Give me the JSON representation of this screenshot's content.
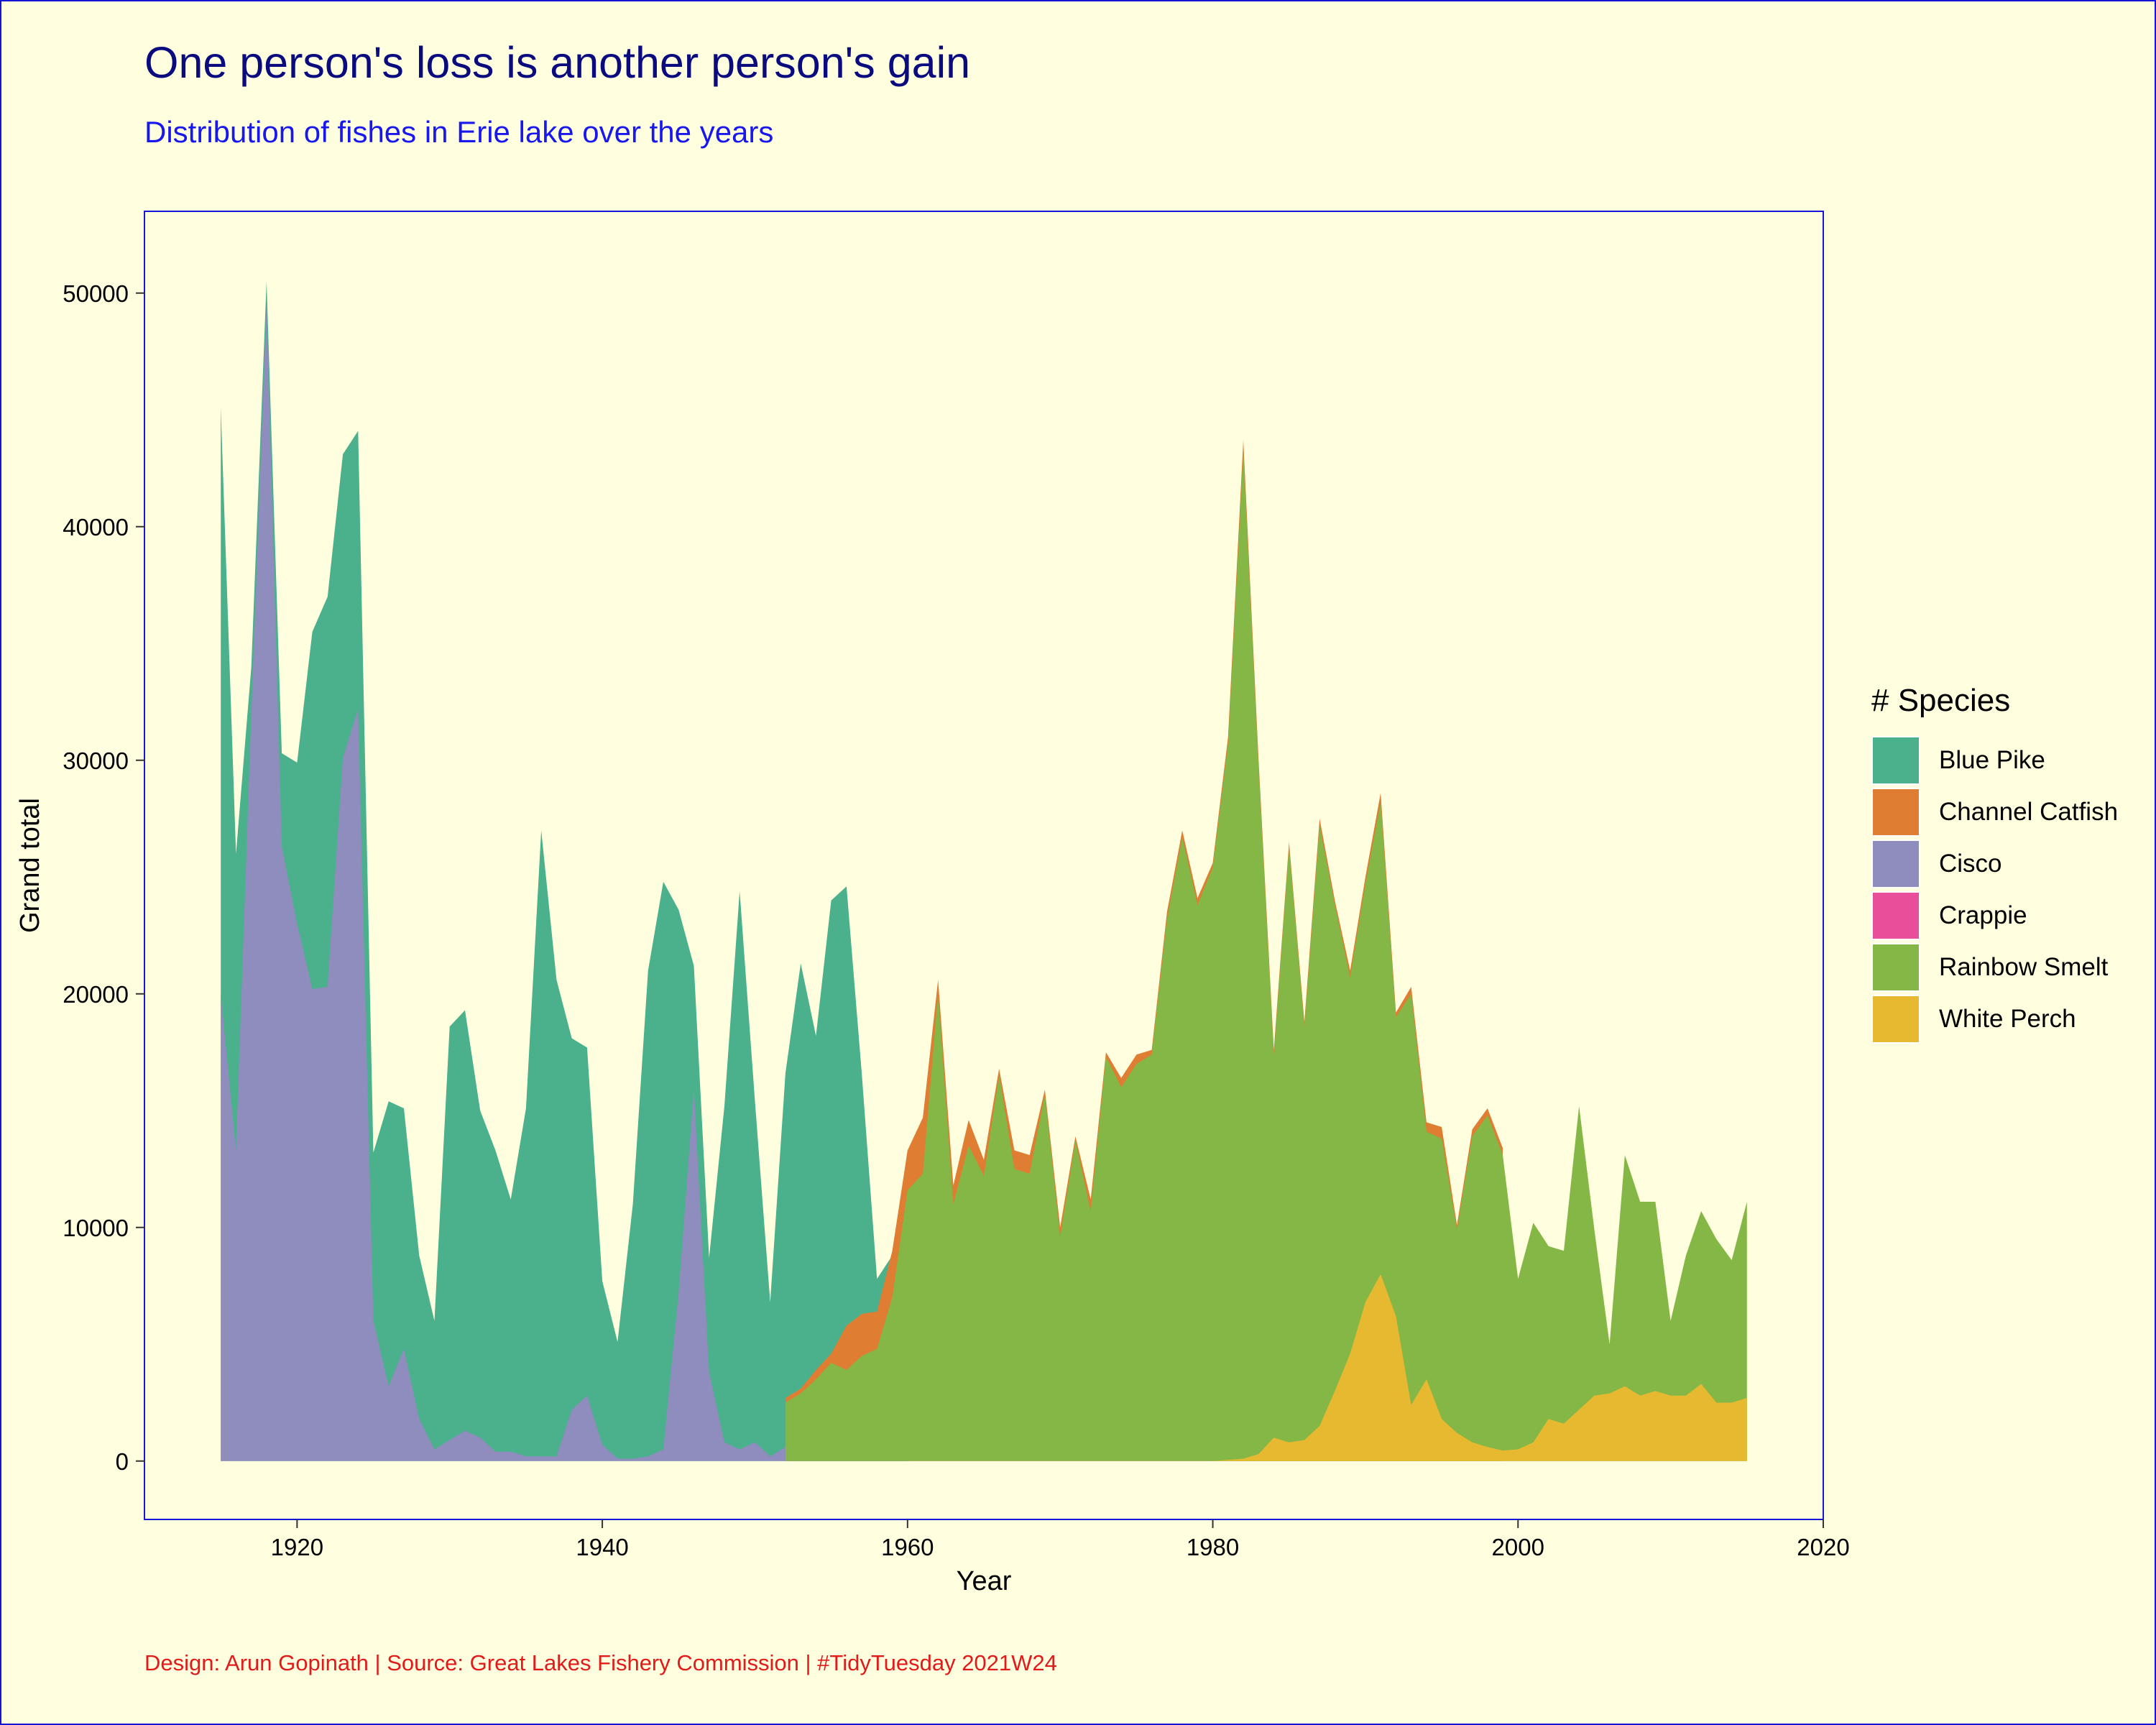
{
  "title": "One person's loss is another person's gain",
  "subtitle": "Distribution of fishes in Erie lake over the years",
  "caption": "Design: Arun Gopinath | Source:  Great Lakes Fishery Commission | #TidyTuesday 2021W24",
  "legend": {
    "title": "# Species",
    "items": [
      {
        "label": "Blue Pike",
        "color": "#4ab18c"
      },
      {
        "label": "Channel Catfish",
        "color": "#df7d33"
      },
      {
        "label": "Cisco",
        "color": "#8f8cbe"
      },
      {
        "label": "Crappie",
        "color": "#e84e9a"
      },
      {
        "label": "Rainbow Smelt",
        "color": "#84b746"
      },
      {
        "label": "White Perch",
        "color": "#e7b930"
      }
    ]
  },
  "chart_data": {
    "type": "area",
    "title": "One person's loss is another person's gain",
    "subtitle": "Distribution of fishes in Erie lake over the years",
    "xlabel": "Year",
    "ylabel": "Grand total",
    "xlim": [
      1910,
      2020
    ],
    "ylim": [
      -2500,
      53500
    ],
    "x_ticks": [
      "1920",
      "1940",
      "1960",
      "1980",
      "2000",
      "2020"
    ],
    "y_ticks": [
      "0",
      "10000",
      "20000",
      "30000",
      "40000",
      "50000"
    ],
    "grid": false,
    "legend_position": "right",
    "stacked": false,
    "series": [
      {
        "name": "Blue Pike",
        "color": "#4ab18c",
        "points": [
          [
            1915,
            45100
          ],
          [
            1916,
            26000
          ],
          [
            1917,
            34000
          ],
          [
            1918,
            50500
          ],
          [
            1919,
            30300
          ],
          [
            1920,
            29900
          ],
          [
            1921,
            35500
          ],
          [
            1922,
            37000
          ],
          [
            1923,
            43100
          ],
          [
            1924,
            44100
          ],
          [
            1925,
            13200
          ],
          [
            1926,
            15400
          ],
          [
            1927,
            15100
          ],
          [
            1928,
            8800
          ],
          [
            1929,
            6000
          ],
          [
            1930,
            18600
          ],
          [
            1931,
            19300
          ],
          [
            1932,
            15000
          ],
          [
            1933,
            13300
          ],
          [
            1934,
            11200
          ],
          [
            1935,
            15100
          ],
          [
            1936,
            27000
          ],
          [
            1937,
            20600
          ],
          [
            1938,
            18100
          ],
          [
            1939,
            17700
          ],
          [
            1940,
            7700
          ],
          [
            1941,
            5100
          ],
          [
            1942,
            11000
          ],
          [
            1943,
            21000
          ],
          [
            1944,
            24800
          ],
          [
            1945,
            23600
          ],
          [
            1946,
            21200
          ],
          [
            1947,
            8700
          ],
          [
            1948,
            15200
          ],
          [
            1949,
            24400
          ],
          [
            1950,
            15400
          ],
          [
            1951,
            6800
          ],
          [
            1952,
            16600
          ],
          [
            1953,
            21300
          ],
          [
            1954,
            18200
          ],
          [
            1955,
            24000
          ],
          [
            1956,
            24600
          ],
          [
            1957,
            16600
          ],
          [
            1958,
            7800
          ],
          [
            1959,
            8800
          ],
          [
            1960,
            9000
          ]
        ]
      },
      {
        "name": "Channel Catfish",
        "color": "#df7d33",
        "points": [
          [
            1952,
            2700
          ],
          [
            1953,
            3100
          ],
          [
            1954,
            3900
          ],
          [
            1955,
            4600
          ],
          [
            1956,
            5800
          ],
          [
            1957,
            6300
          ],
          [
            1958,
            6400
          ],
          [
            1959,
            9000
          ],
          [
            1960,
            13300
          ],
          [
            1961,
            14700
          ],
          [
            1962,
            20600
          ],
          [
            1963,
            11800
          ],
          [
            1964,
            14600
          ],
          [
            1965,
            12900
          ],
          [
            1966,
            16800
          ],
          [
            1967,
            13300
          ],
          [
            1968,
            13100
          ],
          [
            1969,
            15900
          ],
          [
            1970,
            10000
          ],
          [
            1971,
            13900
          ],
          [
            1972,
            11200
          ],
          [
            1973,
            17500
          ],
          [
            1974,
            16400
          ],
          [
            1975,
            17400
          ],
          [
            1976,
            17600
          ],
          [
            1977,
            23500
          ],
          [
            1978,
            27000
          ],
          [
            1979,
            24100
          ],
          [
            1980,
            25600
          ],
          [
            1981,
            31000
          ],
          [
            1982,
            43700
          ],
          [
            1983,
            30000
          ],
          [
            1984,
            17600
          ],
          [
            1985,
            26500
          ],
          [
            1986,
            18800
          ],
          [
            1987,
            27500
          ],
          [
            1988,
            24000
          ],
          [
            1989,
            21000
          ],
          [
            1990,
            25000
          ],
          [
            1991,
            28600
          ],
          [
            1992,
            19200
          ],
          [
            1993,
            20300
          ],
          [
            1994,
            14500
          ],
          [
            1995,
            14300
          ],
          [
            1996,
            10100
          ],
          [
            1997,
            14200
          ],
          [
            1998,
            15100
          ],
          [
            1999,
            13400
          ]
        ]
      },
      {
        "name": "Cisco",
        "color": "#8f8cbe",
        "points": [
          [
            1915,
            20000
          ],
          [
            1916,
            13300
          ],
          [
            1917,
            32000
          ],
          [
            1918,
            49500
          ],
          [
            1919,
            26300
          ],
          [
            1920,
            23000
          ],
          [
            1921,
            20200
          ],
          [
            1922,
            20300
          ],
          [
            1923,
            30100
          ],
          [
            1924,
            32200
          ],
          [
            1925,
            6000
          ],
          [
            1926,
            3200
          ],
          [
            1927,
            4800
          ],
          [
            1928,
            1800
          ],
          [
            1929,
            500
          ],
          [
            1930,
            900
          ],
          [
            1931,
            1300
          ],
          [
            1932,
            1000
          ],
          [
            1933,
            400
          ],
          [
            1934,
            400
          ],
          [
            1935,
            200
          ],
          [
            1936,
            200
          ],
          [
            1937,
            200
          ],
          [
            1938,
            2200
          ],
          [
            1939,
            2800
          ],
          [
            1940,
            700
          ],
          [
            1941,
            100
          ],
          [
            1942,
            100
          ],
          [
            1943,
            200
          ],
          [
            1944,
            500
          ],
          [
            1945,
            7200
          ],
          [
            1946,
            15900
          ],
          [
            1947,
            3800
          ],
          [
            1948,
            800
          ],
          [
            1949,
            500
          ],
          [
            1950,
            800
          ],
          [
            1951,
            200
          ],
          [
            1952,
            600
          ],
          [
            1953,
            1100
          ],
          [
            1954,
            1400
          ],
          [
            1955,
            2000
          ],
          [
            1956,
            3600
          ],
          [
            1957,
            4300
          ],
          [
            1958,
            4700
          ],
          [
            1959,
            6900
          ],
          [
            1960,
            6000
          ]
        ]
      },
      {
        "name": "Rainbow Smelt",
        "color": "#84b746",
        "points": [
          [
            1952,
            2500
          ],
          [
            1953,
            2900
          ],
          [
            1954,
            3500
          ],
          [
            1955,
            4200
          ],
          [
            1956,
            3900
          ],
          [
            1957,
            4500
          ],
          [
            1958,
            4800
          ],
          [
            1959,
            7000
          ],
          [
            1960,
            11600
          ],
          [
            1961,
            12300
          ],
          [
            1962,
            20000
          ],
          [
            1963,
            11000
          ],
          [
            1964,
            13500
          ],
          [
            1965,
            12200
          ],
          [
            1966,
            16500
          ],
          [
            1967,
            12500
          ],
          [
            1968,
            12300
          ],
          [
            1969,
            15700
          ],
          [
            1970,
            9600
          ],
          [
            1971,
            13700
          ],
          [
            1972,
            10700
          ],
          [
            1973,
            17300
          ],
          [
            1974,
            16000
          ],
          [
            1975,
            17000
          ],
          [
            1976,
            17400
          ],
          [
            1977,
            23200
          ],
          [
            1978,
            26700
          ],
          [
            1979,
            23800
          ],
          [
            1980,
            25400
          ],
          [
            1981,
            30700
          ],
          [
            1982,
            43200
          ],
          [
            1983,
            29700
          ],
          [
            1984,
            17400
          ],
          [
            1985,
            26300
          ],
          [
            1986,
            18600
          ],
          [
            1987,
            27200
          ],
          [
            1988,
            23800
          ],
          [
            1989,
            20700
          ],
          [
            1990,
            24700
          ],
          [
            1991,
            28200
          ],
          [
            1992,
            19000
          ],
          [
            1993,
            20000
          ],
          [
            1994,
            14100
          ],
          [
            1995,
            13800
          ],
          [
            1996,
            9900
          ],
          [
            1997,
            13900
          ],
          [
            1998,
            14800
          ],
          [
            1999,
            13100
          ],
          [
            2000,
            7800
          ],
          [
            2001,
            10200
          ],
          [
            2002,
            9200
          ],
          [
            2003,
            9000
          ],
          [
            2004,
            15200
          ],
          [
            2005,
            9900
          ],
          [
            2006,
            5000
          ],
          [
            2007,
            13100
          ],
          [
            2008,
            11100
          ],
          [
            2009,
            11100
          ],
          [
            2010,
            6000
          ],
          [
            2011,
            8800
          ],
          [
            2012,
            10700
          ],
          [
            2013,
            9500
          ],
          [
            2014,
            8600
          ],
          [
            2015,
            11100
          ]
        ]
      },
      {
        "name": "White Perch",
        "color": "#e7b930",
        "points": [
          [
            1980,
            0
          ],
          [
            1981,
            50
          ],
          [
            1982,
            100
          ],
          [
            1983,
            300
          ],
          [
            1984,
            1000
          ],
          [
            1985,
            800
          ],
          [
            1986,
            900
          ],
          [
            1987,
            1500
          ],
          [
            1988,
            3000
          ],
          [
            1989,
            4600
          ],
          [
            1990,
            6800
          ],
          [
            1991,
            8000
          ],
          [
            1992,
            6200
          ],
          [
            1993,
            2400
          ],
          [
            1994,
            3500
          ],
          [
            1995,
            1800
          ],
          [
            1996,
            1200
          ],
          [
            1997,
            800
          ],
          [
            1998,
            600
          ],
          [
            1999,
            450
          ],
          [
            2000,
            500
          ],
          [
            2001,
            800
          ],
          [
            2002,
            1800
          ],
          [
            2003,
            1600
          ],
          [
            2004,
            2200
          ],
          [
            2005,
            2800
          ],
          [
            2006,
            2900
          ],
          [
            2007,
            3200
          ],
          [
            2008,
            2800
          ],
          [
            2009,
            3000
          ],
          [
            2010,
            2800
          ],
          [
            2011,
            2800
          ],
          [
            2012,
            3300
          ],
          [
            2013,
            2500
          ],
          [
            2014,
            2500
          ],
          [
            2015,
            2700
          ]
        ]
      }
    ]
  }
}
